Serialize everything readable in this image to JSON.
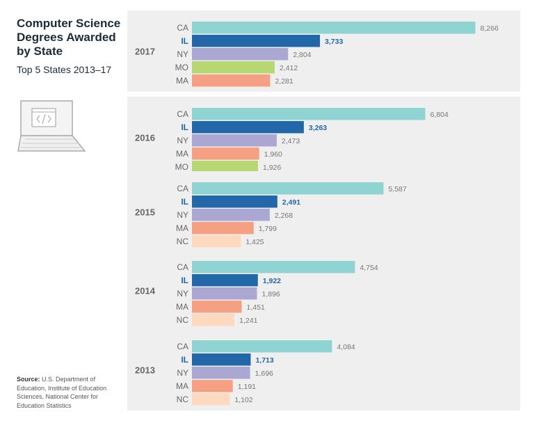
{
  "title": "Computer Science Degrees Awarded by State",
  "subtitle": "Top 5 States 2013–17",
  "source_label": "Source:",
  "source_text": "U.S. Department of Education, Institute of Education Sciences, National Center for Education Statistics",
  "colors": {
    "CA": "#8fd3d3",
    "IL": "#2268a8",
    "NY": "#aba7d3",
    "MO": "#b6d873",
    "MA": "#f5a083",
    "NC": "#fcd9bf",
    "panel": "#efefef",
    "label": "#666666",
    "il_text": "#2268a8",
    "value": "#777777"
  },
  "chart_data": {
    "type": "bar",
    "orientation": "horizontal",
    "title": "Computer Science Degrees Awarded by State",
    "subtitle": "Top 5 States 2013–17",
    "groups": [
      {
        "year": "2017",
        "bars": [
          {
            "state": "CA",
            "value": 8266,
            "label": "8,266"
          },
          {
            "state": "IL",
            "value": 3733,
            "label": "3,733"
          },
          {
            "state": "NY",
            "value": 2804,
            "label": "2,804"
          },
          {
            "state": "MO",
            "value": 2412,
            "label": "2,412"
          },
          {
            "state": "MA",
            "value": 2281,
            "label": "2,281"
          }
        ]
      },
      {
        "year": "2016",
        "bars": [
          {
            "state": "CA",
            "value": 6804,
            "label": "6,804"
          },
          {
            "state": "IL",
            "value": 3263,
            "label": "3,263"
          },
          {
            "state": "NY",
            "value": 2473,
            "label": "2,473"
          },
          {
            "state": "MA",
            "value": 1960,
            "label": "1,960"
          },
          {
            "state": "MO",
            "value": 1926,
            "label": "1,926"
          }
        ]
      },
      {
        "year": "2015",
        "bars": [
          {
            "state": "CA",
            "value": 5587,
            "label": "5,587"
          },
          {
            "state": "IL",
            "value": 2491,
            "label": "2,491"
          },
          {
            "state": "NY",
            "value": 2268,
            "label": "2,268"
          },
          {
            "state": "MA",
            "value": 1799,
            "label": "1,799"
          },
          {
            "state": "NC",
            "value": 1425,
            "label": "1,425"
          }
        ]
      },
      {
        "year": "2014",
        "bars": [
          {
            "state": "CA",
            "value": 4754,
            "label": "4,754"
          },
          {
            "state": "IL",
            "value": 1922,
            "label": "1,922"
          },
          {
            "state": "NY",
            "value": 1896,
            "label": "1,896"
          },
          {
            "state": "MA",
            "value": 1451,
            "label": "1,451"
          },
          {
            "state": "NC",
            "value": 1241,
            "label": "1,241"
          }
        ]
      },
      {
        "year": "2013",
        "bars": [
          {
            "state": "CA",
            "value": 4084,
            "label": "4,084"
          },
          {
            "state": "IL",
            "value": 1713,
            "label": "1,713"
          },
          {
            "state": "NY",
            "value": 1696,
            "label": "1,696"
          },
          {
            "state": "MA",
            "value": 1191,
            "label": "1,191"
          },
          {
            "state": "NC",
            "value": 1102,
            "label": "1,102"
          }
        ]
      }
    ],
    "xlim": [
      0,
      8600
    ],
    "grid": false,
    "legend": "none"
  }
}
